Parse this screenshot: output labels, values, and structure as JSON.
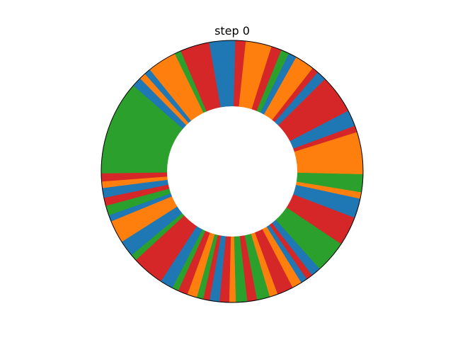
{
  "chart_data": {
    "type": "pie",
    "title": "step 0",
    "style": "donut",
    "start": "top",
    "direction": "clockwise",
    "colors": {
      "blue": "#1f77b4",
      "orange": "#ff7f0e",
      "green": "#2ca02c",
      "red": "#d62728"
    },
    "slices": [
      {
        "color": "blue",
        "value": 1.0
      },
      {
        "color": "red",
        "value": 3.2
      },
      {
        "color": "orange",
        "value": 8.0
      },
      {
        "color": "red",
        "value": 3.2
      },
      {
        "color": "green",
        "value": 2.5
      },
      {
        "color": "blue",
        "value": 2.5
      },
      {
        "color": "orange",
        "value": 6.0
      },
      {
        "color": "red",
        "value": 2.0
      },
      {
        "color": "blue",
        "value": 3.0
      },
      {
        "color": "red",
        "value": 12.0
      },
      {
        "color": "blue",
        "value": 5.0
      },
      {
        "color": "red",
        "value": 2.0
      },
      {
        "color": "orange",
        "value": 13.0
      },
      {
        "color": "green",
        "value": 5.5
      },
      {
        "color": "orange",
        "value": 2.0
      },
      {
        "color": "blue",
        "value": 6.0
      },
      {
        "color": "red",
        "value": 9.0
      },
      {
        "color": "green",
        "value": 10.0
      },
      {
        "color": "blue",
        "value": 3.0
      },
      {
        "color": "red",
        "value": 2.0
      },
      {
        "color": "blue",
        "value": 2.0
      },
      {
        "color": "orange",
        "value": 3.0
      },
      {
        "color": "red",
        "value": 5.0
      },
      {
        "color": "orange",
        "value": 2.5
      },
      {
        "color": "green",
        "value": 4.0
      },
      {
        "color": "red",
        "value": 3.0
      },
      {
        "color": "green",
        "value": 3.5
      },
      {
        "color": "orange",
        "value": 2.0
      },
      {
        "color": "red",
        "value": 3.0
      },
      {
        "color": "blue",
        "value": 3.0
      },
      {
        "color": "red",
        "value": 2.0
      },
      {
        "color": "green",
        "value": 2.0
      },
      {
        "color": "orange",
        "value": 3.0
      },
      {
        "color": "red",
        "value": 3.0
      },
      {
        "color": "green",
        "value": 2.0
      },
      {
        "color": "blue",
        "value": 4.0
      },
      {
        "color": "red",
        "value": 10.0
      },
      {
        "color": "green",
        "value": 2.0
      },
      {
        "color": "blue",
        "value": 5.0
      },
      {
        "color": "orange",
        "value": 7.0
      },
      {
        "color": "blue",
        "value": 2.0
      },
      {
        "color": "green",
        "value": 3.0
      },
      {
        "color": "red",
        "value": 2.5
      },
      {
        "color": "blue",
        "value": 3.0
      },
      {
        "color": "orange",
        "value": 2.0
      },
      {
        "color": "red",
        "value": 2.5
      },
      {
        "color": "green",
        "value": 29.0
      },
      {
        "color": "blue",
        "value": 3.0
      },
      {
        "color": "orange",
        "value": 2.0
      },
      {
        "color": "blue",
        "value": 2.0
      },
      {
        "color": "orange",
        "value": 9.0
      },
      {
        "color": "green",
        "value": 2.0
      },
      {
        "color": "red",
        "value": 9.0
      },
      {
        "color": "blue",
        "value": 7.0
      }
    ]
  }
}
